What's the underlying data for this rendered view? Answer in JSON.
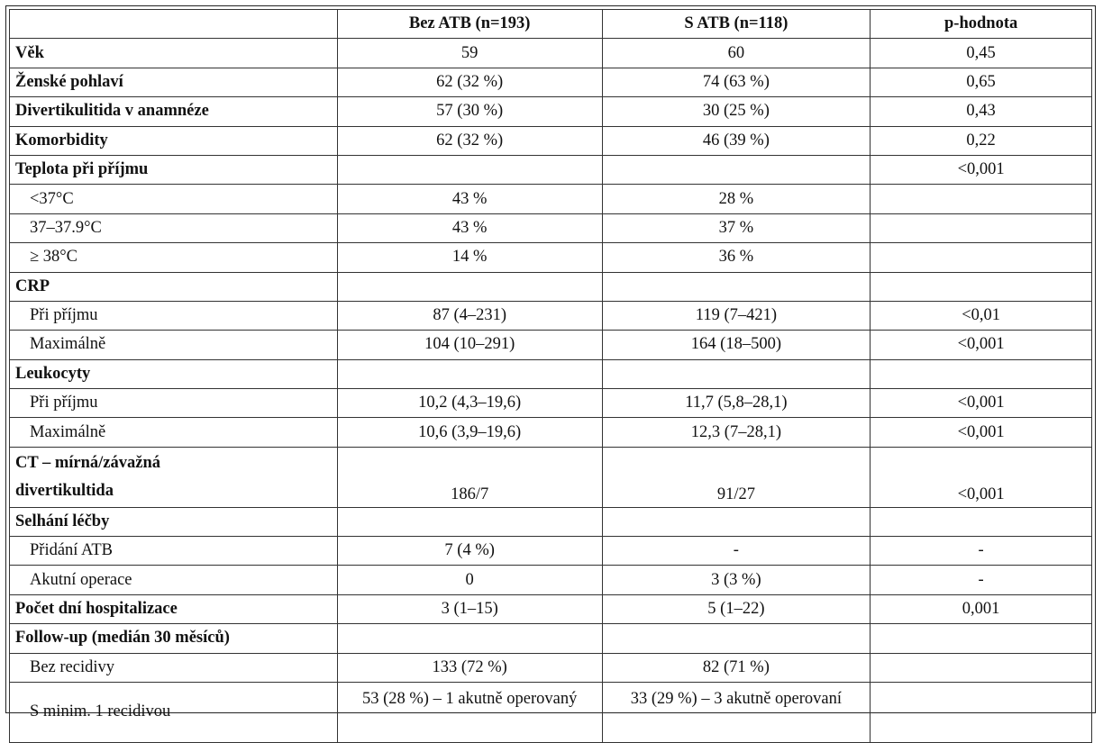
{
  "table": {
    "headers": [
      "",
      "Bez ATB (n=193)",
      "S ATB (n=118)",
      "p-hodnota"
    ],
    "rows": [
      {
        "label": "Věk",
        "level": "main",
        "cells": [
          "59",
          "60",
          "0,45"
        ]
      },
      {
        "label": "Ženské pohlaví",
        "level": "main",
        "cells": [
          "62 (32 %)",
          "74 (63 %)",
          "0,65"
        ]
      },
      {
        "label": "Divertikulitida v anamnéze",
        "level": "main",
        "cells": [
          "57 (30 %)",
          "30 (25 %)",
          "0,43"
        ]
      },
      {
        "label": "Komorbidity",
        "level": "main",
        "cells": [
          "62 (32 %)",
          "46 (39 %)",
          "0,22"
        ]
      },
      {
        "label": "Teplota při příjmu",
        "level": "main",
        "cells": [
          "",
          "",
          "<0,001"
        ]
      },
      {
        "label": "<37°C",
        "level": "sub",
        "cells": [
          "43 %",
          "28 %",
          ""
        ]
      },
      {
        "label": "37–37.9°C",
        "level": "sub",
        "cells": [
          "43 %",
          "37 %",
          ""
        ]
      },
      {
        "label": "≥ 38°C",
        "level": "sub",
        "cells": [
          "14 %",
          "36 %",
          ""
        ]
      },
      {
        "label": "CRP",
        "level": "main",
        "cells": [
          "",
          "",
          ""
        ]
      },
      {
        "label": "Při příjmu",
        "level": "sub",
        "cells": [
          "87 (4–231)",
          "119 (7–421)",
          "<0,01"
        ]
      },
      {
        "label": "Maximálně",
        "level": "sub",
        "cells": [
          "104 (10–291)",
          "164 (18–500)",
          "<0,001"
        ]
      },
      {
        "label": "Leukocyty",
        "level": "main",
        "cells": [
          "",
          "",
          ""
        ]
      },
      {
        "label": "Při příjmu",
        "level": "sub",
        "cells": [
          "10,2 (4,3–19,6)",
          "11,7 (5,8–28,1)",
          "<0,001"
        ]
      },
      {
        "label": "Maximálně",
        "level": "sub",
        "cells": [
          "10,6 (3,9–19,6)",
          "12,3 (7–28,1)",
          "<0,001"
        ]
      },
      {
        "label": "CT – mírná/závažná\ndivertikultida",
        "level": "main",
        "tall": "bottom",
        "cells": [
          "186/7",
          "91/27",
          "<0,001"
        ]
      },
      {
        "label": "Selhání léčby",
        "level": "main",
        "cells": [
          "",
          "",
          ""
        ]
      },
      {
        "label": "Přidání ATB",
        "level": "sub",
        "cells": [
          "7 (4 %)",
          "-",
          "-"
        ]
      },
      {
        "label": "Akutní operace",
        "level": "sub",
        "cells": [
          "0",
          "3 (3 %)",
          "-"
        ]
      },
      {
        "label": "Počet dní hospitalizace",
        "level": "main",
        "cells": [
          "3 (1–15)",
          "5 (1–22)",
          "0,001"
        ]
      },
      {
        "label": "Follow-up (medián 30 měsíců)",
        "level": "main",
        "cells": [
          "",
          "",
          ""
        ]
      },
      {
        "label": "Bez recidivy",
        "level": "sub",
        "cells": [
          "133 (72 %)",
          "82 (71 %)",
          ""
        ]
      },
      {
        "label": "S minim. 1 recidivou",
        "level": "sub",
        "tall": "top",
        "cells": [
          "53 (28 %) – 1 akutně operovaný",
          "33 (29 %) – 3 akutně operovaní",
          ""
        ]
      }
    ]
  }
}
